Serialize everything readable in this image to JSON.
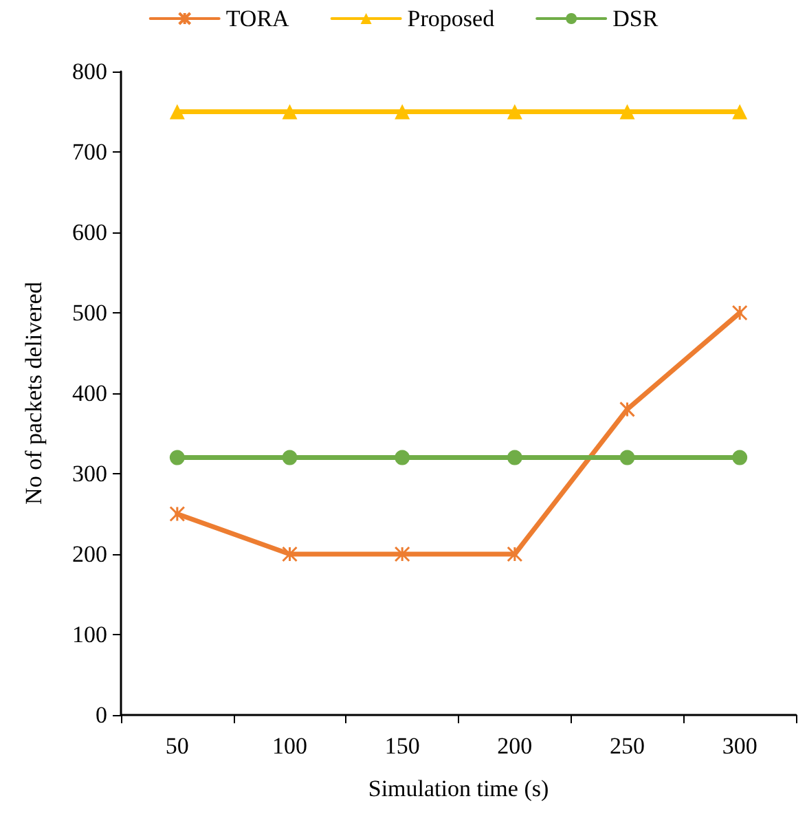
{
  "chart_data": {
    "type": "line",
    "xlabel": "Simulation time (s)",
    "ylabel": "No of packets delivered",
    "categories": [
      "50",
      "100",
      "150",
      "200",
      "250",
      "300"
    ],
    "series": [
      {
        "name": "TORA",
        "color": "#ed7d31",
        "marker": "cross",
        "values": [
          250,
          200,
          200,
          200,
          380,
          500
        ]
      },
      {
        "name": "Proposed",
        "color": "#ffc000",
        "marker": "triangle",
        "values": [
          750,
          750,
          750,
          750,
          750,
          750
        ]
      },
      {
        "name": "DSR",
        "color": "#70ad47",
        "marker": "circle",
        "values": [
          320,
          320,
          320,
          320,
          320,
          320
        ]
      }
    ],
    "ylim": [
      0,
      800
    ],
    "yticks": [
      0,
      100,
      200,
      300,
      400,
      500,
      600,
      700,
      800
    ],
    "grid": false,
    "legend": "top",
    "line_style": "solid"
  }
}
